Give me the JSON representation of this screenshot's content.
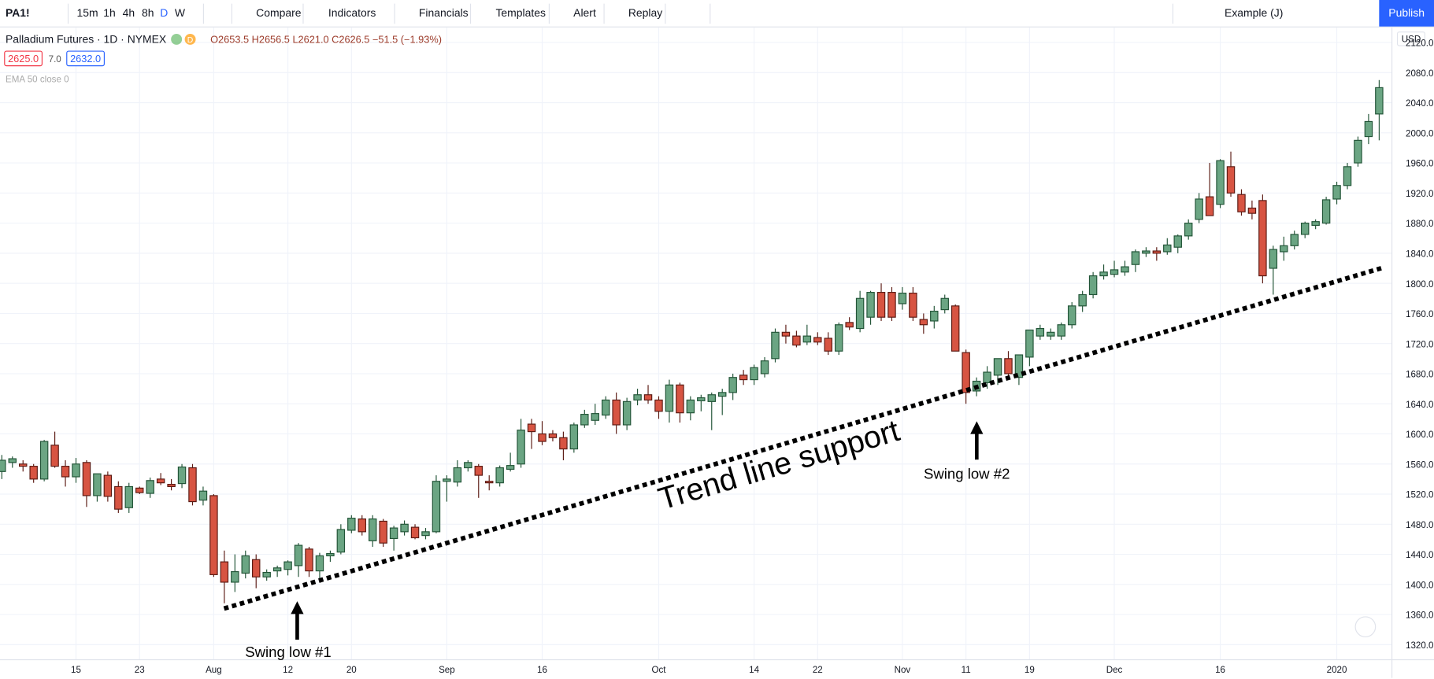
{
  "toolbar": {
    "symbol": "PA1!",
    "intervals": [
      "15m",
      "1h",
      "4h",
      "8h",
      "D",
      "W"
    ],
    "buttons": [
      "Compare",
      "Indicators",
      "Financials",
      "Templates",
      "Alert",
      "Replay"
    ],
    "layout": "Example (J)",
    "publish": "Publish"
  },
  "legend": {
    "title": "Palladium Futures · 1D · NYMEX",
    "badge": "D",
    "ohlc": "O2653.5 H2656.5 L2621.0 C2626.5 −51.5 (−1.93%)",
    "bid": "2625.0",
    "spread": "7.0",
    "ask": "2632.0",
    "indicator": "EMA 50 close 0"
  },
  "chart_data": {
    "type": "candlestick",
    "currency": "USD",
    "colors": {
      "up": "#6ba583",
      "down": "#d75442",
      "up_border": "#225437",
      "down_border": "#5b1a13"
    },
    "ylim": [
      1300,
      2140
    ],
    "yticks": [
      {
        "value": 1320,
        "label": "1320.0"
      },
      {
        "value": 1360,
        "label": "1360.0"
      },
      {
        "value": 1400,
        "label": "1400.0"
      },
      {
        "value": 1440,
        "label": "1440.0"
      },
      {
        "value": 1480,
        "label": "1480.0"
      },
      {
        "value": 1520,
        "label": "1520.0"
      },
      {
        "value": 1560,
        "label": "1560.0"
      },
      {
        "value": 1600,
        "label": "1600.0"
      },
      {
        "value": 1640,
        "label": "1640.0"
      },
      {
        "value": 1680,
        "label": "1680.0"
      },
      {
        "value": 1720,
        "label": "1720.0"
      },
      {
        "value": 1760,
        "label": "1760.0"
      },
      {
        "value": 1800,
        "label": "1800.0"
      },
      {
        "value": 1840,
        "label": "1840.0"
      },
      {
        "value": 1880,
        "label": "1880.0"
      },
      {
        "value": 1920,
        "label": "1920.0"
      },
      {
        "value": 1960,
        "label": "1960.0"
      },
      {
        "value": 2000,
        "label": "2000.0"
      },
      {
        "value": 2040,
        "label": "2040.0"
      },
      {
        "value": 2080,
        "label": "2080.0"
      },
      {
        "value": 2120,
        "label": "2120.0"
      }
    ],
    "xticks": [
      {
        "index": 7,
        "label": "15"
      },
      {
        "index": 13,
        "label": "23"
      },
      {
        "index": 20,
        "label": "Aug"
      },
      {
        "index": 27,
        "label": "12"
      },
      {
        "index": 33,
        "label": "20"
      },
      {
        "index": 42,
        "label": "Sep"
      },
      {
        "index": 51,
        "label": "16"
      },
      {
        "index": 62,
        "label": "Oct"
      },
      {
        "index": 71,
        "label": "14"
      },
      {
        "index": 77,
        "label": "22"
      },
      {
        "index": 85,
        "label": "Nov"
      },
      {
        "index": 91,
        "label": "11"
      },
      {
        "index": 97,
        "label": "19"
      },
      {
        "index": 105,
        "label": "Dec"
      },
      {
        "index": 115,
        "label": "16"
      },
      {
        "index": 126,
        "label": "2020"
      }
    ],
    "ohlc": [
      [
        1550,
        1572,
        1540,
        1565
      ],
      [
        1562,
        1570,
        1555,
        1567
      ],
      [
        1560,
        1565,
        1550,
        1557
      ],
      [
        1557,
        1560,
        1535,
        1540
      ],
      [
        1540,
        1592,
        1537,
        1590
      ],
      [
        1585,
        1603,
        1555,
        1557
      ],
      [
        1557,
        1565,
        1530,
        1543
      ],
      [
        1543,
        1568,
        1535,
        1560
      ],
      [
        1562,
        1565,
        1503,
        1518
      ],
      [
        1518,
        1540,
        1510,
        1547
      ],
      [
        1545,
        1550,
        1510,
        1517
      ],
      [
        1530,
        1537,
        1495,
        1500
      ],
      [
        1502,
        1535,
        1495,
        1530
      ],
      [
        1528,
        1530,
        1520,
        1522
      ],
      [
        1521,
        1542,
        1515,
        1538
      ],
      [
        1540,
        1548,
        1532,
        1535
      ],
      [
        1533,
        1540,
        1525,
        1530
      ],
      [
        1534,
        1560,
        1528,
        1556
      ],
      [
        1555,
        1560,
        1505,
        1510
      ],
      [
        1512,
        1530,
        1505,
        1524
      ],
      [
        1518,
        1520,
        1410,
        1413
      ],
      [
        1430,
        1445,
        1375,
        1403
      ],
      [
        1403,
        1440,
        1390,
        1417
      ],
      [
        1415,
        1445,
        1408,
        1438
      ],
      [
        1433,
        1440,
        1395,
        1410
      ],
      [
        1410,
        1420,
        1405,
        1416
      ],
      [
        1418,
        1425,
        1410,
        1422
      ],
      [
        1420,
        1432,
        1412,
        1430
      ],
      [
        1425,
        1455,
        1410,
        1452
      ],
      [
        1447,
        1450,
        1410,
        1418
      ],
      [
        1418,
        1442,
        1405,
        1438
      ],
      [
        1438,
        1445,
        1430,
        1441
      ],
      [
        1443,
        1480,
        1440,
        1473
      ],
      [
        1472,
        1492,
        1468,
        1488
      ],
      [
        1487,
        1492,
        1465,
        1470
      ],
      [
        1458,
        1492,
        1450,
        1487
      ],
      [
        1484,
        1487,
        1450,
        1455
      ],
      [
        1461,
        1478,
        1445,
        1475
      ],
      [
        1470,
        1485,
        1465,
        1480
      ],
      [
        1476,
        1480,
        1460,
        1462
      ],
      [
        1465,
        1475,
        1460,
        1470
      ],
      [
        1470,
        1545,
        1468,
        1537
      ],
      [
        1537,
        1545,
        1510,
        1540
      ],
      [
        1536,
        1565,
        1530,
        1555
      ],
      [
        1555,
        1565,
        1550,
        1562
      ],
      [
        1557,
        1560,
        1515,
        1545
      ],
      [
        1537,
        1545,
        1525,
        1535
      ],
      [
        1535,
        1558,
        1530,
        1555
      ],
      [
        1553,
        1575,
        1550,
        1558
      ],
      [
        1560,
        1620,
        1555,
        1605
      ],
      [
        1613,
        1620,
        1580,
        1603
      ],
      [
        1600,
        1617,
        1585,
        1590
      ],
      [
        1600,
        1605,
        1590,
        1595
      ],
      [
        1595,
        1603,
        1565,
        1580
      ],
      [
        1580,
        1615,
        1575,
        1612
      ],
      [
        1612,
        1632,
        1608,
        1626
      ],
      [
        1618,
        1640,
        1612,
        1627
      ],
      [
        1625,
        1650,
        1620,
        1645
      ],
      [
        1645,
        1655,
        1600,
        1612
      ],
      [
        1612,
        1648,
        1605,
        1643
      ],
      [
        1645,
        1660,
        1638,
        1652
      ],
      [
        1652,
        1665,
        1640,
        1645
      ],
      [
        1645,
        1650,
        1620,
        1630
      ],
      [
        1630,
        1672,
        1615,
        1665
      ],
      [
        1665,
        1668,
        1615,
        1628
      ],
      [
        1628,
        1650,
        1618,
        1645
      ],
      [
        1644,
        1652,
        1630,
        1648
      ],
      [
        1643,
        1655,
        1605,
        1652
      ],
      [
        1650,
        1660,
        1625,
        1655
      ],
      [
        1655,
        1680,
        1645,
        1675
      ],
      [
        1678,
        1685,
        1665,
        1672
      ],
      [
        1672,
        1692,
        1665,
        1688
      ],
      [
        1680,
        1702,
        1675,
        1697
      ],
      [
        1700,
        1740,
        1695,
        1735
      ],
      [
        1735,
        1745,
        1720,
        1730
      ],
      [
        1730,
        1737,
        1715,
        1718
      ],
      [
        1722,
        1745,
        1718,
        1730
      ],
      [
        1728,
        1735,
        1718,
        1722
      ],
      [
        1727,
        1735,
        1705,
        1710
      ],
      [
        1710,
        1748,
        1705,
        1745
      ],
      [
        1748,
        1755,
        1738,
        1742
      ],
      [
        1740,
        1790,
        1735,
        1780
      ],
      [
        1755,
        1790,
        1745,
        1788
      ],
      [
        1788,
        1800,
        1750,
        1755
      ],
      [
        1788,
        1795,
        1750,
        1755
      ],
      [
        1773,
        1795,
        1765,
        1787
      ],
      [
        1787,
        1795,
        1750,
        1755
      ],
      [
        1752,
        1760,
        1733,
        1745
      ],
      [
        1750,
        1770,
        1740,
        1763
      ],
      [
        1765,
        1785,
        1760,
        1780
      ],
      [
        1770,
        1772,
        1710,
        1710
      ],
      [
        1708,
        1712,
        1640,
        1655
      ],
      [
        1657,
        1675,
        1650,
        1670
      ],
      [
        1668,
        1690,
        1660,
        1682
      ],
      [
        1678,
        1700,
        1665,
        1700
      ],
      [
        1700,
        1710,
        1672,
        1680
      ],
      [
        1675,
        1705,
        1665,
        1705
      ],
      [
        1702,
        1738,
        1690,
        1738
      ],
      [
        1730,
        1745,
        1725,
        1740
      ],
      [
        1730,
        1740,
        1725,
        1735
      ],
      [
        1730,
        1748,
        1725,
        1745
      ],
      [
        1745,
        1775,
        1740,
        1770
      ],
      [
        1770,
        1790,
        1762,
        1785
      ],
      [
        1785,
        1815,
        1780,
        1810
      ],
      [
        1810,
        1825,
        1805,
        1815
      ],
      [
        1812,
        1830,
        1808,
        1818
      ],
      [
        1815,
        1830,
        1810,
        1822
      ],
      [
        1825,
        1845,
        1815,
        1842
      ],
      [
        1840,
        1848,
        1835,
        1843
      ],
      [
        1843,
        1848,
        1830,
        1840
      ],
      [
        1842,
        1860,
        1838,
        1851
      ],
      [
        1848,
        1865,
        1840,
        1863
      ],
      [
        1863,
        1885,
        1858,
        1880
      ],
      [
        1885,
        1920,
        1880,
        1912
      ],
      [
        1915,
        1960,
        1890,
        1890
      ],
      [
        1905,
        1965,
        1900,
        1963
      ],
      [
        1955,
        1975,
        1915,
        1920
      ],
      [
        1918,
        1925,
        1890,
        1895
      ],
      [
        1900,
        1910,
        1885,
        1893
      ],
      [
        1910,
        1918,
        1800,
        1810
      ],
      [
        1820,
        1850,
        1785,
        1845
      ],
      [
        1842,
        1862,
        1830,
        1850
      ],
      [
        1850,
        1870,
        1845,
        1865
      ],
      [
        1865,
        1882,
        1860,
        1880
      ],
      [
        1877,
        1885,
        1872,
        1882
      ],
      [
        1880,
        1915,
        1878,
        1911
      ],
      [
        1912,
        1935,
        1905,
        1930
      ],
      [
        1930,
        1960,
        1925,
        1955
      ],
      [
        1960,
        1995,
        1955,
        1990
      ],
      [
        1995,
        2025,
        1985,
        2015
      ],
      [
        2025,
        2070,
        1990,
        2060
      ]
    ],
    "annotations": {
      "trend": "Trend line support",
      "low1": "Swing low #1",
      "low2": "Swing low #2"
    }
  }
}
